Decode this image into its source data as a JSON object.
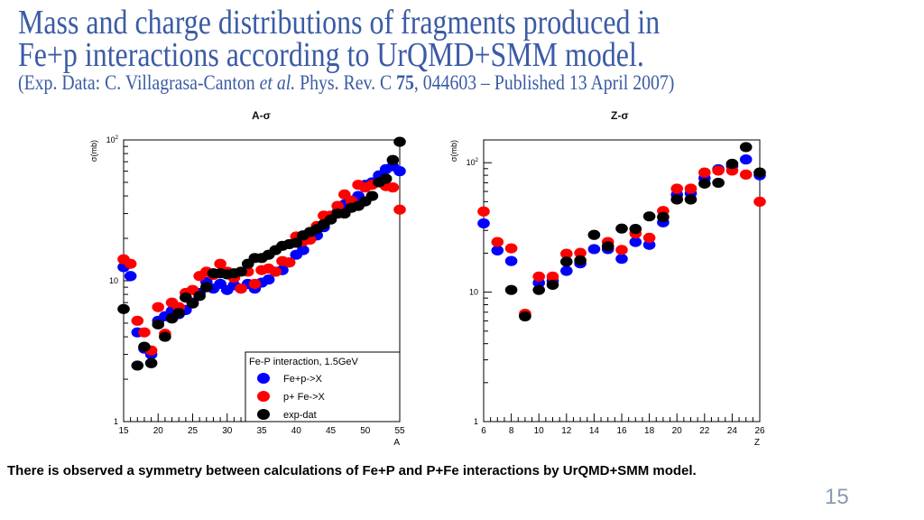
{
  "slide": {
    "title_line1": "Mass and charge distributions of fragments produced in",
    "title_line2": "Fe+p interactions according to UrQMD+SMM model.",
    "citation_pre": "(Exp. Data: C. Villagrasa-Canton ",
    "citation_etal": "et al.",
    "citation_mid": " Phys. Rev. C ",
    "citation_vol": "75",
    "citation_post": ", 044603 – Published 13 April 2007)",
    "footer": "There is observed a symmetry between calculations of Fe+P and P+Fe  interactions by UrQMD+SMM model.",
    "page_number": "15",
    "title_color": "#3a5ba6"
  },
  "chart_data": [
    {
      "type": "scatter",
      "title": "A-σ",
      "xlabel": "A",
      "ylabel": "σ(mb)",
      "xlim": [
        15,
        55
      ],
      "ylim": [
        1,
        100
      ],
      "yscale": "log",
      "xticks": [
        15,
        20,
        25,
        30,
        35,
        40,
        45,
        50,
        55
      ],
      "yticks": [
        {
          "v": 1,
          "label": "1"
        },
        {
          "v": 10,
          "label": "10"
        },
        {
          "v": 100,
          "label": "10²"
        }
      ],
      "grid": false,
      "legend": {
        "title": "Fe-P interaction, 1.5GeV",
        "placement": "bottom-right"
      },
      "series": [
        {
          "name": "Fe+p->X",
          "color": "#0000ff",
          "x": [
            15,
            16,
            17,
            18,
            19,
            20,
            21,
            22,
            23,
            24,
            25,
            26,
            27,
            28,
            29,
            30,
            31,
            32,
            33,
            34,
            35,
            36,
            37,
            38,
            39,
            40,
            41,
            42,
            43,
            44,
            45,
            46,
            47,
            48,
            49,
            50,
            51,
            52,
            53,
            54,
            55
          ],
          "y": [
            12.5,
            10.8,
            4.3,
            3.3,
            3.0,
            5.2,
            5.6,
            6.1,
            5.8,
            6.2,
            7.0,
            8.2,
            9.8,
            8.8,
            9.5,
            8.6,
            9.3,
            8.8,
            9.5,
            8.8,
            9.7,
            10.2,
            11.6,
            11.9,
            13.5,
            15.3,
            16.5,
            20.6,
            21,
            24,
            27.8,
            30.7,
            34.8,
            37,
            40,
            48,
            50,
            56,
            62,
            65,
            60
          ]
        },
        {
          "name": "p+ Fe->X",
          "color": "#ff0000",
          "x": [
            15,
            16,
            17,
            18,
            19,
            20,
            21,
            22,
            23,
            24,
            25,
            26,
            27,
            28,
            29,
            30,
            31,
            32,
            33,
            34,
            35,
            36,
            37,
            38,
            39,
            40,
            41,
            42,
            43,
            44,
            45,
            46,
            47,
            48,
            49,
            50,
            51,
            52,
            53,
            54,
            55
          ],
          "y": [
            14.2,
            13.2,
            5.2,
            4.3,
            3.2,
            6.5,
            4.2,
            7.0,
            6.5,
            8.2,
            8.6,
            10.8,
            11.6,
            11.0,
            13.2,
            11.6,
            10.5,
            8.8,
            11.6,
            9.5,
            11.9,
            12.2,
            11.6,
            13.8,
            13.5,
            20.6,
            19.1,
            19.6,
            24.5,
            29,
            29,
            34,
            41,
            37,
            48,
            46,
            48,
            50,
            47,
            46,
            32
          ]
        },
        {
          "name": "exp-dat",
          "color": "#000000",
          "x": [
            15,
            17,
            18,
            19,
            20,
            21,
            22,
            23,
            24,
            25,
            26,
            27,
            28,
            29,
            30,
            31,
            32,
            33,
            34,
            35,
            36,
            37,
            38,
            39,
            40,
            41,
            42,
            43,
            44,
            45,
            46,
            47,
            48,
            49,
            50,
            51,
            52,
            53,
            54,
            55
          ],
          "y": [
            6.3,
            2.5,
            3.4,
            2.6,
            4.9,
            4.0,
            5.4,
            5.9,
            7.6,
            6.9,
            7.8,
            9.0,
            11.3,
            11.3,
            11.1,
            11.3,
            11.6,
            13.2,
            14.5,
            14.5,
            15.3,
            16.5,
            17.7,
            18.2,
            18.6,
            21,
            22.2,
            23.3,
            25.2,
            27.2,
            30,
            30,
            33,
            34,
            36.6,
            40,
            50,
            53,
            72,
            97
          ]
        }
      ]
    },
    {
      "type": "scatter",
      "title": "Z-σ",
      "xlabel": "Z",
      "ylabel": "σ(mb)",
      "xlim": [
        6,
        26
      ],
      "ylim": [
        1,
        150
      ],
      "yscale": "log",
      "xticks": [
        6,
        8,
        10,
        12,
        14,
        16,
        18,
        20,
        22,
        24,
        26
      ],
      "yticks": [
        {
          "v": 1,
          "label": "1"
        },
        {
          "v": 10,
          "label": "10"
        },
        {
          "v": 100,
          "label": "10²"
        }
      ],
      "grid": false,
      "series": [
        {
          "color": "#0000ff",
          "x": [
            6,
            7,
            8,
            9,
            10,
            11,
            12,
            13,
            14,
            15,
            16,
            17,
            18,
            19,
            20,
            21,
            22,
            23,
            24,
            25,
            26
          ],
          "y": [
            34,
            21,
            17.4,
            6.6,
            11.8,
            12.2,
            14.6,
            16.7,
            21.5,
            21.5,
            18.1,
            24.4,
            23.2,
            34.6,
            56.6,
            58,
            76,
            89,
            94,
            106,
            80
          ]
        },
        {
          "color": "#ff0000",
          "x": [
            6,
            7,
            8,
            9,
            10,
            11,
            12,
            13,
            14,
            15,
            16,
            17,
            18,
            19,
            20,
            21,
            22,
            23,
            24,
            25,
            26
          ],
          "y": [
            42,
            24.4,
            21.8,
            6.8,
            13.2,
            13.2,
            19.8,
            20.1,
            27.7,
            24.4,
            21.2,
            28.4,
            26.3,
            42.4,
            63,
            63,
            84,
            87,
            87,
            81,
            50
          ]
        },
        {
          "color": "#000000",
          "x": [
            8,
            9,
            10,
            11,
            12,
            13,
            14,
            15,
            16,
            17,
            18,
            19,
            20,
            21,
            22,
            23,
            24,
            25,
            26
          ],
          "y": [
            10.4,
            6.5,
            10.4,
            11.4,
            17.2,
            17.6,
            27.7,
            22.6,
            31,
            30.8,
            38.5,
            38,
            52,
            52,
            69,
            70,
            98,
            132,
            84
          ]
        }
      ]
    }
  ]
}
